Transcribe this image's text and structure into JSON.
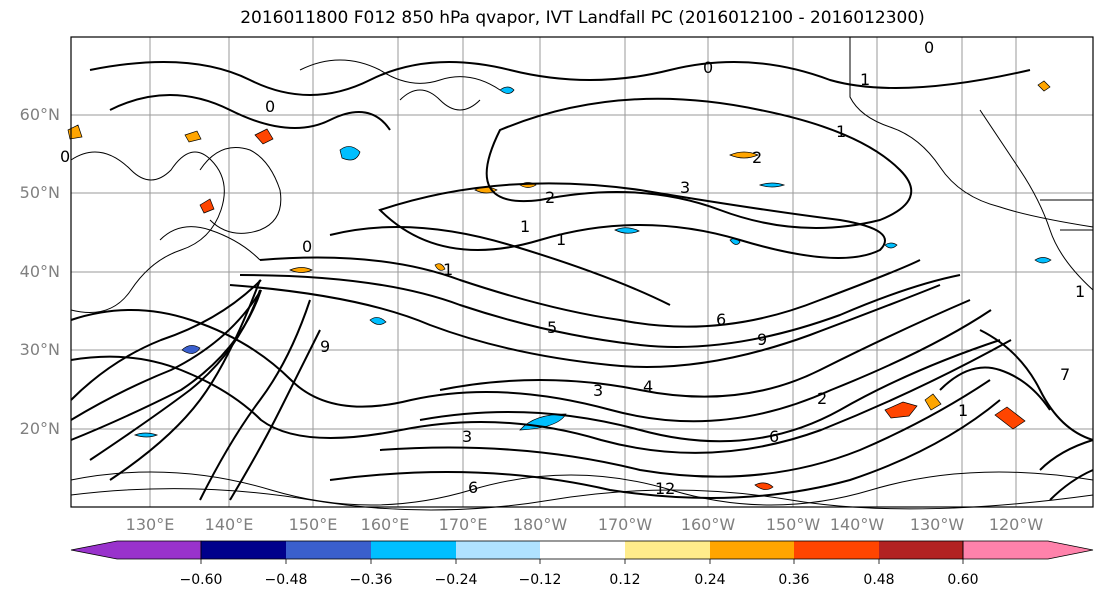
{
  "title": "2016011800 F012 850 hPa qvapor, IVT Landfall PC (2016012100 - 2016012300)",
  "map": {
    "lat_labels": [
      "60°N",
      "50°N",
      "40°N",
      "30°N",
      "20°N"
    ],
    "lon_labels": [
      "130°E",
      "140°E",
      "150°E",
      "160°E",
      "170°E",
      "180°W",
      "170°W",
      "160°W",
      "150°W",
      "140°W",
      "130°W",
      "120°W"
    ],
    "contour_labels": [
      "0",
      "0",
      "1",
      "0",
      "0",
      "2",
      "3",
      "2",
      "1",
      "1",
      "1",
      "1",
      "0",
      "5",
      "6",
      "9",
      "3",
      "4",
      "6",
      "2",
      "7",
      "3",
      "9",
      "12",
      "6",
      "1",
      "1"
    ]
  },
  "colorbar": {
    "colors": [
      "#9932cc",
      "#00008b",
      "#3a5fcd",
      "#00bfff",
      "#b0e2ff",
      "#ffffff",
      "#ffec8b",
      "#ffa500",
      "#ff4500",
      "#b22222",
      "#ff82ab"
    ],
    "tick_labels": [
      "−0.60",
      "−0.48",
      "−0.36",
      "−0.24",
      "−0.12",
      "0.12",
      "0.24",
      "0.36",
      "0.48",
      "0.60"
    ]
  }
}
